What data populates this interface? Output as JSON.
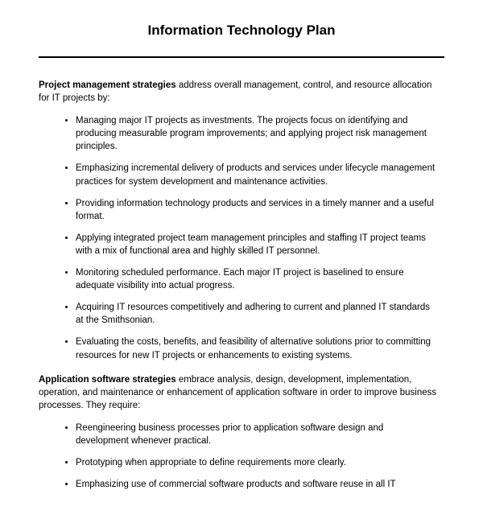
{
  "title": "Information Technology Plan",
  "section1": {
    "lead": "Project management strategies",
    "intro": " address overall management, control, and resource allocation for IT projects by:",
    "bullets": [
      "Managing major IT projects as investments. The projects focus on identifying and producing measurable program improvements; and applying project risk management principles.",
      "Emphasizing incremental delivery of products and services under lifecycle management practices for system development and maintenance activities.",
      "Providing information technology products and services in a timely manner and a useful format.",
      "Applying integrated project team management principles and staffing IT project teams with a mix of functional area and highly skilled IT personnel.",
      "Monitoring scheduled performance. Each major IT project is baselined to ensure adequate visibility into actual progress.",
      "Acquiring IT resources competitively and adhering to current and planned IT standards at the Smithsonian.",
      "Evaluating the costs, benefits, and feasibility of alternative solutions prior to committing resources for new IT projects or enhancements to existing systems."
    ]
  },
  "section2": {
    "lead": "Application software strategies",
    "intro": " embrace analysis, design, development, implementation, operation, and maintenance or enhancement of application software in order to improve business processes. They require:",
    "bullets": [
      "Reengineering business processes prior to application software design and development whenever practical.",
      "Prototyping when appropriate to define requirements more clearly.",
      "Emphasizing use of commercial software products and software reuse in all IT"
    ]
  }
}
